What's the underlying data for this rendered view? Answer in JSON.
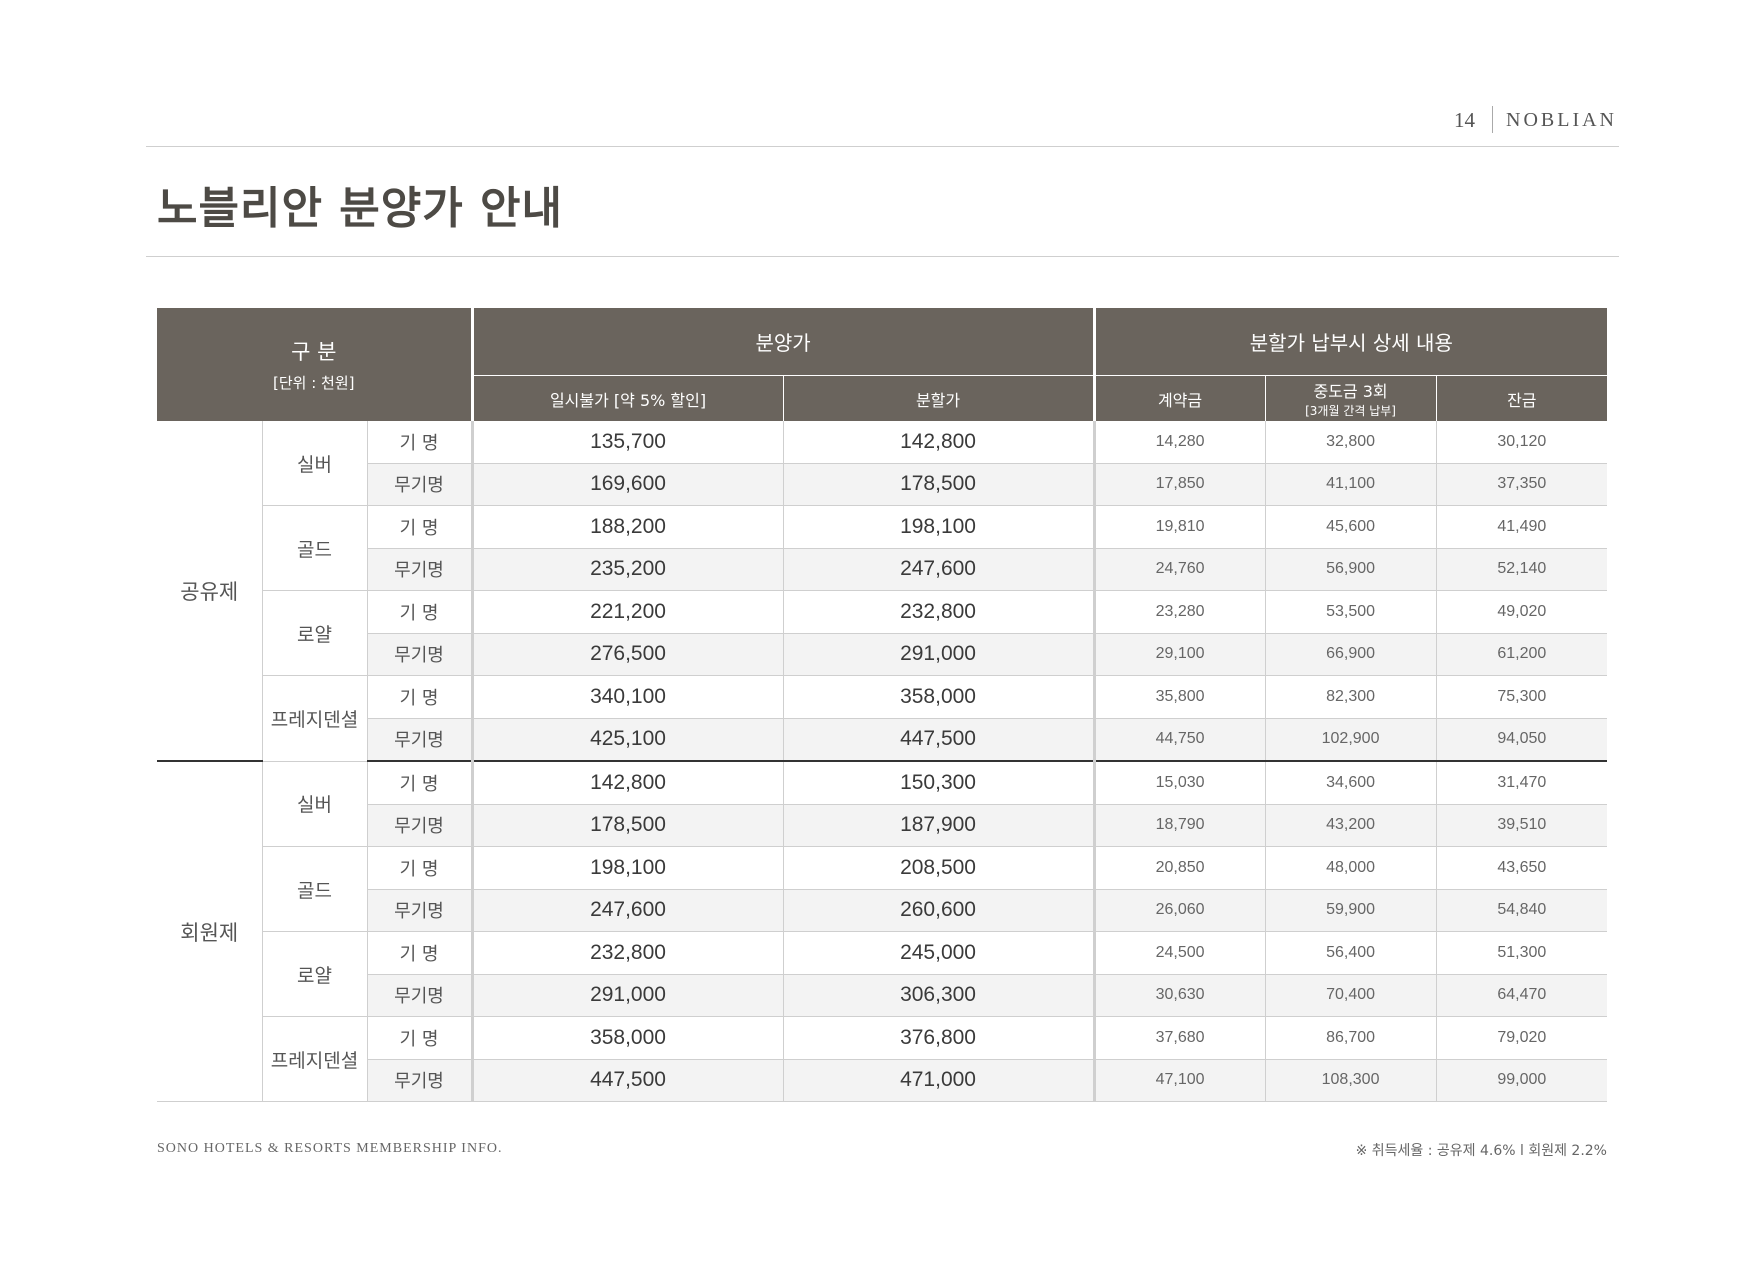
{
  "header": {
    "page_number": "14",
    "brand": "NOBLIAN"
  },
  "title": "노블리안 분양가 안내",
  "table": {
    "headers": {
      "gubun": "구 분",
      "unit": "[단위 : 천원]",
      "bunyangga": "분양가",
      "installment_detail": "분할가 납부시 상세 내용",
      "lump_sum": "일시불가 [약 5% 할인]",
      "installment": "분할가",
      "deposit": "계약금",
      "interim": "중도금 3회",
      "interim_note": "[3개월 간격 납부]",
      "balance": "잔금"
    },
    "groups": [
      {
        "category": "공유제",
        "grades": [
          {
            "name": "실버",
            "rows": [
              {
                "type": "기 명",
                "lump": "135,700",
                "install": "142,800",
                "deposit": "14,280",
                "interim": "32,800",
                "balance": "30,120"
              },
              {
                "type": "무기명",
                "lump": "169,600",
                "install": "178,500",
                "deposit": "17,850",
                "interim": "41,100",
                "balance": "37,350"
              }
            ]
          },
          {
            "name": "골드",
            "rows": [
              {
                "type": "기 명",
                "lump": "188,200",
                "install": "198,100",
                "deposit": "19,810",
                "interim": "45,600",
                "balance": "41,490"
              },
              {
                "type": "무기명",
                "lump": "235,200",
                "install": "247,600",
                "deposit": "24,760",
                "interim": "56,900",
                "balance": "52,140"
              }
            ]
          },
          {
            "name": "로얄",
            "rows": [
              {
                "type": "기 명",
                "lump": "221,200",
                "install": "232,800",
                "deposit": "23,280",
                "interim": "53,500",
                "balance": "49,020"
              },
              {
                "type": "무기명",
                "lump": "276,500",
                "install": "291,000",
                "deposit": "29,100",
                "interim": "66,900",
                "balance": "61,200"
              }
            ]
          },
          {
            "name": "프레지덴셜",
            "rows": [
              {
                "type": "기 명",
                "lump": "340,100",
                "install": "358,000",
                "deposit": "35,800",
                "interim": "82,300",
                "balance": "75,300"
              },
              {
                "type": "무기명",
                "lump": "425,100",
                "install": "447,500",
                "deposit": "44,750",
                "interim": "102,900",
                "balance": "94,050"
              }
            ]
          }
        ]
      },
      {
        "category": "회원제",
        "grades": [
          {
            "name": "실버",
            "rows": [
              {
                "type": "기 명",
                "lump": "142,800",
                "install": "150,300",
                "deposit": "15,030",
                "interim": "34,600",
                "balance": "31,470"
              },
              {
                "type": "무기명",
                "lump": "178,500",
                "install": "187,900",
                "deposit": "18,790",
                "interim": "43,200",
                "balance": "39,510"
              }
            ]
          },
          {
            "name": "골드",
            "rows": [
              {
                "type": "기 명",
                "lump": "198,100",
                "install": "208,500",
                "deposit": "20,850",
                "interim": "48,000",
                "balance": "43,650"
              },
              {
                "type": "무기명",
                "lump": "247,600",
                "install": "260,600",
                "deposit": "26,060",
                "interim": "59,900",
                "balance": "54,840"
              }
            ]
          },
          {
            "name": "로얄",
            "rows": [
              {
                "type": "기 명",
                "lump": "232,800",
                "install": "245,000",
                "deposit": "24,500",
                "interim": "56,400",
                "balance": "51,300"
              },
              {
                "type": "무기명",
                "lump": "291,000",
                "install": "306,300",
                "deposit": "30,630",
                "interim": "70,400",
                "balance": "64,470"
              }
            ]
          },
          {
            "name": "프레지덴셜",
            "rows": [
              {
                "type": "기 명",
                "lump": "358,000",
                "install": "376,800",
                "deposit": "37,680",
                "interim": "86,700",
                "balance": "79,020"
              },
              {
                "type": "무기명",
                "lump": "447,500",
                "install": "471,000",
                "deposit": "47,100",
                "interim": "108,300",
                "balance": "99,000"
              }
            ]
          }
        ]
      }
    ]
  },
  "footer": {
    "left": "SONO HOTELS & RESORTS MEMBERSHIP INFO.",
    "right": "※ 취득세율 : 공유제 4.6% l 회원제 2.2%"
  },
  "colors": {
    "header_bg": "#6a645d",
    "alt_row": "#f3f3f3"
  }
}
